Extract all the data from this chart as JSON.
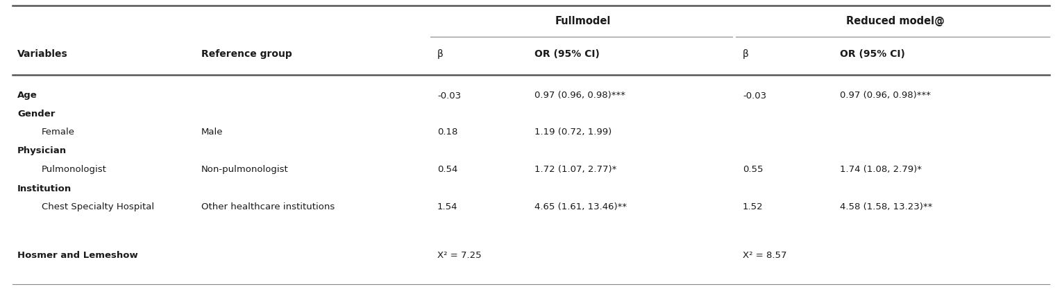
{
  "columns": {
    "col1_header": "Variables",
    "col2_header": "Reference group",
    "col3_header": "β",
    "col4_header": "OR (95% CI)",
    "col5_header": "β",
    "col6_header": "OR (95% CI)"
  },
  "group_headers": {
    "fullmodel": "Fullmodel",
    "reduced": "Reduced model@"
  },
  "rows": [
    {
      "var": "Age",
      "bold_var": true,
      "indent": false,
      "ref": "",
      "b1": "-0.03",
      "or1": "0.97 (0.96, 0.98)***",
      "b2": "-0.03",
      "or2": "0.97 (0.96, 0.98)***"
    },
    {
      "var": "Gender",
      "bold_var": true,
      "indent": false,
      "ref": "",
      "b1": "",
      "or1": "",
      "b2": "",
      "or2": ""
    },
    {
      "var": "Female",
      "bold_var": false,
      "indent": true,
      "ref": "Male",
      "b1": "0.18",
      "or1": "1.19 (0.72, 1.99)",
      "b2": "",
      "or2": ""
    },
    {
      "var": "Physician",
      "bold_var": true,
      "indent": false,
      "ref": "",
      "b1": "",
      "or1": "",
      "b2": "",
      "or2": ""
    },
    {
      "var": "Pulmonologist",
      "bold_var": false,
      "indent": true,
      "ref": "Non-pulmonologist",
      "b1": "0.54",
      "or1": "1.72 (1.07, 2.77)*",
      "b2": "0.55",
      "or2": "1.74 (1.08, 2.79)*"
    },
    {
      "var": "Institution",
      "bold_var": true,
      "indent": false,
      "ref": "",
      "b1": "",
      "or1": "",
      "b2": "",
      "or2": ""
    },
    {
      "var": "Chest Specialty Hospital",
      "bold_var": false,
      "indent": true,
      "ref": "Other healthcare institutions",
      "b1": "1.54",
      "or1": "4.65 (1.61, 13.46)**",
      "b2": "1.52",
      "or2": "4.58 (1.58, 13.23)**"
    },
    {
      "var": "Hosmer and Lemeshow",
      "bold_var": true,
      "indent": false,
      "ref": "",
      "b1": "X² = 7.25",
      "or1": "",
      "b2": "X² = 8.57",
      "or2": ""
    }
  ],
  "background_color": "#ffffff",
  "text_color": "#1a1a1a",
  "font_size_data": 9.5,
  "font_size_header": 10.0,
  "font_size_group": 10.5
}
